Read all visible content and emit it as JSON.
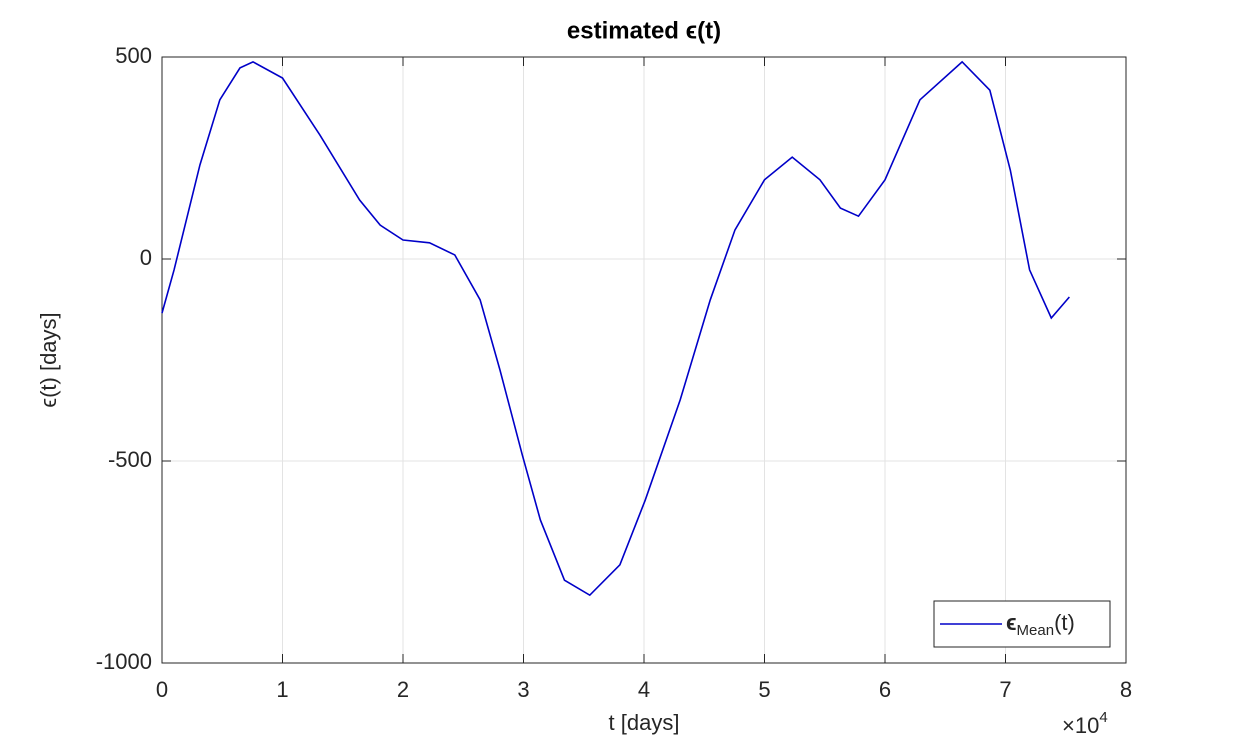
{
  "chart_data": {
    "type": "line",
    "title": "estimated  ϵ(t)",
    "x_label": "t [days]",
    "y_label": "ϵ(t)  [days]",
    "x_multiplier": {
      "base": "×10",
      "exponent": "4"
    },
    "x": [
      0,
      1000,
      3150,
      4800,
      6470,
      7550,
      10000,
      13100,
      16400,
      18100,
      20000,
      22200,
      24300,
      26400,
      28050,
      29900,
      31400,
      33400,
      35500,
      38000,
      40100,
      43000,
      45500,
      47550,
      50000,
      52300,
      54600,
      56300,
      57800,
      60000,
      62900,
      66400,
      68700,
      70400,
      72000,
      73800,
      75300
    ],
    "series": [
      {
        "name_parts": [
          "ϵ",
          "Mean",
          "(t)"
        ],
        "color": "#0000c8",
        "values": [
          -134,
          -27,
          233,
          394,
          473,
          488,
          448,
          307,
          146,
          84,
          47,
          40,
          10,
          -101,
          -275,
          -485,
          -646,
          -795,
          -832,
          -757,
          -597,
          -349,
          -101,
          72,
          196,
          252,
          196,
          126,
          106,
          196,
          394,
          488,
          418,
          220,
          -27,
          -146,
          -94
        ]
      }
    ],
    "xlim": [
      0,
      80000
    ],
    "ylim": [
      -1000,
      500
    ],
    "xticks": [
      {
        "value": 0,
        "label": "0"
      },
      {
        "value": 10000,
        "label": "1"
      },
      {
        "value": 20000,
        "label": "2"
      },
      {
        "value": 30000,
        "label": "3"
      },
      {
        "value": 40000,
        "label": "4"
      },
      {
        "value": 50000,
        "label": "5"
      },
      {
        "value": 60000,
        "label": "6"
      },
      {
        "value": 70000,
        "label": "7"
      },
      {
        "value": 80000,
        "label": "8"
      }
    ],
    "yticks": [
      -1000,
      -500,
      0,
      500
    ],
    "grid": true,
    "legend": "bottom-right"
  }
}
